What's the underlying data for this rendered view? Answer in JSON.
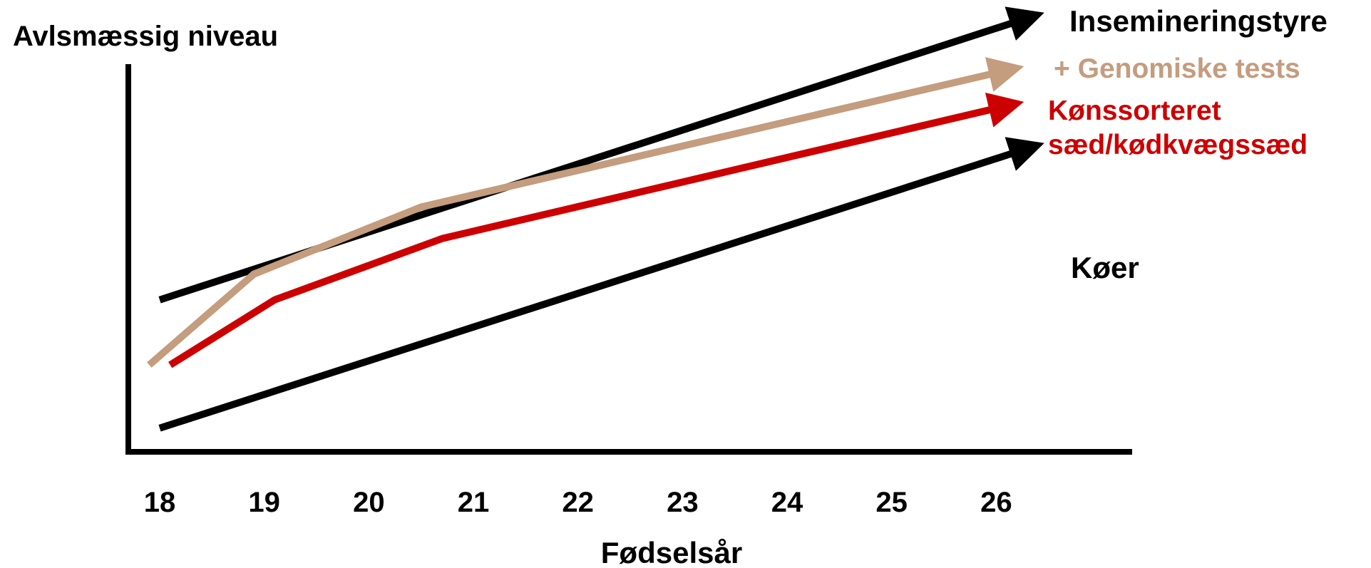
{
  "chart_data": {
    "type": "line",
    "title": "",
    "ylabel": "Avlsmæssig niveau",
    "xlabel": "Fødselsår",
    "categories": [
      "18",
      "19",
      "20",
      "21",
      "22",
      "23",
      "24",
      "25",
      "26"
    ],
    "xlim": [
      17.7,
      27.3
    ],
    "ylim": [
      0,
      100
    ],
    "grid": false,
    "series": [
      {
        "name": "Insemineringstyre",
        "x": [
          18.0,
          26.2
        ],
        "y": [
          38.5,
          109.0
        ],
        "color": "#000000"
      },
      {
        "name": "+ Genomiske tests",
        "x": [
          17.9,
          18.9,
          20.5,
          26.0
        ],
        "y": [
          22.0,
          45.0,
          62.0,
          96.0
        ],
        "color": "#c49c7e"
      },
      {
        "name": "Kønssorteret sæd/kødkvægssæd",
        "x": [
          18.1,
          19.1,
          20.7,
          26.0
        ],
        "y": [
          22.0,
          38.5,
          54.0,
          87.0
        ],
        "color": "#cc0000"
      },
      {
        "name": "Køer",
        "x": [
          18.0,
          26.2
        ],
        "y": [
          6.0,
          76.0
        ],
        "color": "#000000"
      }
    ]
  },
  "labels": {
    "insemination": "Insemineringstyre",
    "genomic": "+ Genomiske tests",
    "sorted_line1": "Kønssorteret",
    "sorted_line2": "sæd/kødkvægssæd",
    "cows": "Køer"
  }
}
